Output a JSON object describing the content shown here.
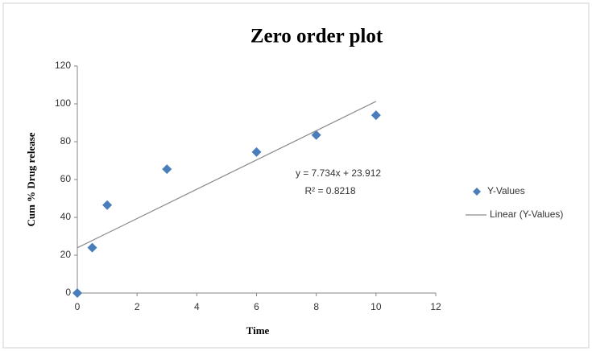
{
  "chart_data": {
    "type": "scatter",
    "title": "Zero order plot",
    "x_label": "Time",
    "y_label": "Cum % Drug release",
    "xlim": [
      0,
      12
    ],
    "xticks": [
      0,
      2,
      4,
      6,
      8,
      10,
      12
    ],
    "ylim": [
      0,
      120
    ],
    "yticks": [
      0,
      20,
      40,
      60,
      80,
      100,
      120
    ],
    "grid": false,
    "legend": "right",
    "annotations": [
      "y = 7.734x + 23.912",
      "R² = 0.8218"
    ],
    "series": [
      {
        "name": "Y-Values",
        "color": "#4a7ebb",
        "style": "markers",
        "x": [
          0,
          0.5,
          1,
          3,
          6,
          8,
          10
        ],
        "values": [
          0,
          24,
          46.5,
          65.5,
          74.5,
          83.5,
          94
        ]
      },
      {
        "name": "Linear (Y-Values)",
        "color": "#8a8a8a",
        "style": "line",
        "x": [
          0,
          10
        ],
        "values": [
          23.9,
          101.3
        ]
      }
    ]
  }
}
